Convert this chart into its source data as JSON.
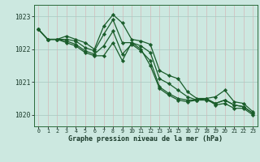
{
  "title": "Graphe pression niveau de la mer (hPa)",
  "background_color": "#cce8e0",
  "plot_bg_color": "#cce8e0",
  "grid_color": "#aacccc",
  "line_color": "#1a5c2a",
  "marker_color": "#1a5c2a",
  "xlim": [
    -0.5,
    23.5
  ],
  "ylim": [
    1019.65,
    1023.35
  ],
  "yticks": [
    1020,
    1021,
    1022,
    1023
  ],
  "xticks": [
    0,
    1,
    2,
    3,
    4,
    5,
    6,
    7,
    8,
    9,
    10,
    11,
    12,
    13,
    14,
    15,
    16,
    17,
    18,
    19,
    20,
    21,
    22,
    23
  ],
  "series": [
    [
      1022.6,
      1022.3,
      1022.3,
      1022.4,
      1022.3,
      1022.2,
      1022.0,
      1022.7,
      1023.05,
      1022.8,
      1022.3,
      1022.25,
      1022.15,
      1021.35,
      1021.2,
      1021.1,
      1020.7,
      1020.5,
      1020.5,
      1020.55,
      1020.75,
      1020.4,
      1020.35,
      1020.1
    ],
    [
      1022.6,
      1022.3,
      1022.3,
      1022.3,
      1022.25,
      1022.05,
      1021.95,
      1022.45,
      1022.9,
      1022.2,
      1022.2,
      1022.1,
      1021.9,
      1021.1,
      1020.95,
      1020.75,
      1020.55,
      1020.45,
      1020.45,
      1020.35,
      1020.45,
      1020.3,
      1020.25,
      1020.05
    ],
    [
      1022.6,
      1022.3,
      1022.3,
      1022.25,
      1022.15,
      1021.95,
      1021.85,
      1022.1,
      1022.55,
      1021.85,
      1022.15,
      1021.95,
      1021.65,
      1020.85,
      1020.65,
      1020.5,
      1020.45,
      1020.45,
      1020.5,
      1020.35,
      1020.45,
      1020.3,
      1020.25,
      1020.05
    ],
    [
      1022.6,
      1022.3,
      1022.3,
      1022.2,
      1022.1,
      1021.9,
      1021.8,
      1021.8,
      1022.2,
      1021.65,
      1022.2,
      1022.0,
      1021.5,
      1020.8,
      1020.6,
      1020.45,
      1020.4,
      1020.45,
      1020.5,
      1020.3,
      1020.35,
      1020.2,
      1020.2,
      1020.0
    ]
  ]
}
